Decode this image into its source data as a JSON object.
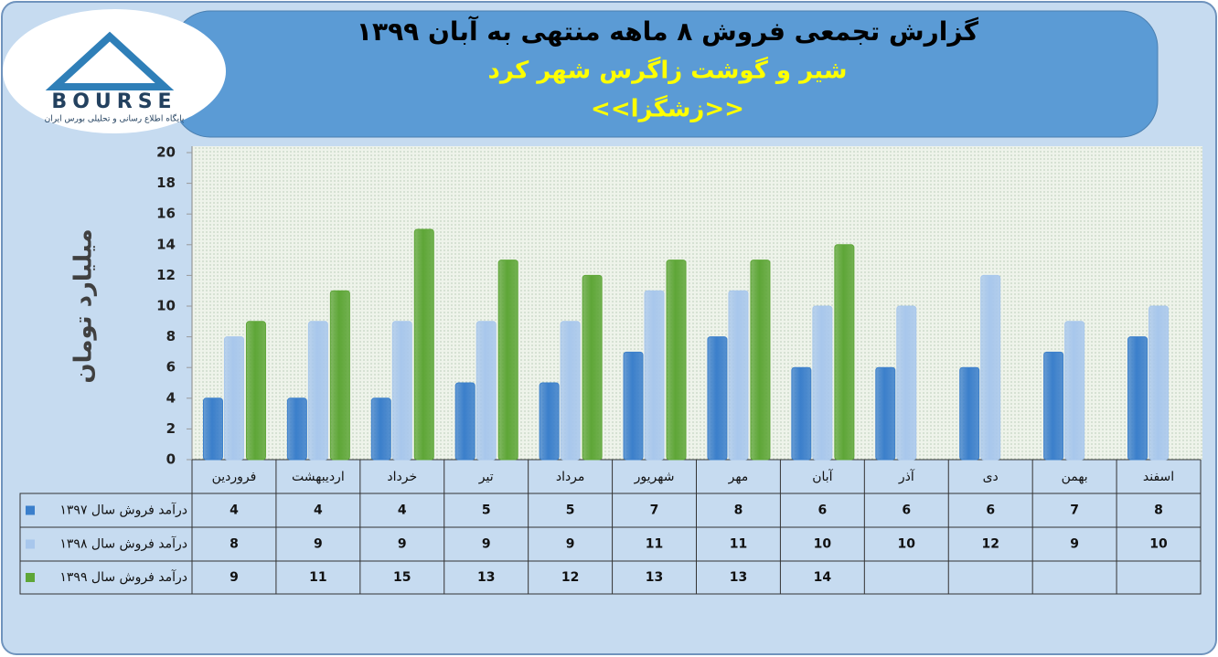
{
  "logo": {
    "name": "BOURSE",
    "tagline": "پایگاه اطلاع رسانی و تحلیلی بورس ایران"
  },
  "chart_data": {
    "type": "bar",
    "title": "گزارش تجمعی فروش ۸ ماهه منتهی به آبان ۱۳۹۹",
    "subtitle": "شیر و گوشت زاگرس شهر کرد",
    "symbol": "<<زشگزا>>",
    "y_label": "میلیارد تومان",
    "categories": [
      "فروردین",
      "اردیبهشت",
      "خرداد",
      "تیر",
      "مرداد",
      "شهریور",
      "مهر",
      "آبان",
      "آذر",
      "دی",
      "بهمن",
      "اسفند"
    ],
    "series": [
      {
        "name": "درآمد فروش سال ۱۳۹۷",
        "color": "#3b7fcb",
        "values": [
          4,
          4,
          4,
          5,
          5,
          7,
          8,
          6,
          6,
          6,
          7,
          8
        ]
      },
      {
        "name": "درآمد فروش سال ۱۳۹۸",
        "color": "#a8c7ec",
        "values": [
          8,
          9,
          9,
          9,
          9,
          11,
          11,
          10,
          10,
          12,
          9,
          10
        ]
      },
      {
        "name": "درآمد فروش سال ۱۳۹۹",
        "color": "#5ea637",
        "values": [
          9,
          11,
          15,
          13,
          12,
          13,
          13,
          14,
          null,
          null,
          null,
          null
        ]
      }
    ],
    "ylim": [
      0,
      20
    ],
    "yticks": [
      0,
      2,
      4,
      6,
      8,
      10,
      12,
      14,
      16,
      18,
      20
    ],
    "grid": false
  }
}
